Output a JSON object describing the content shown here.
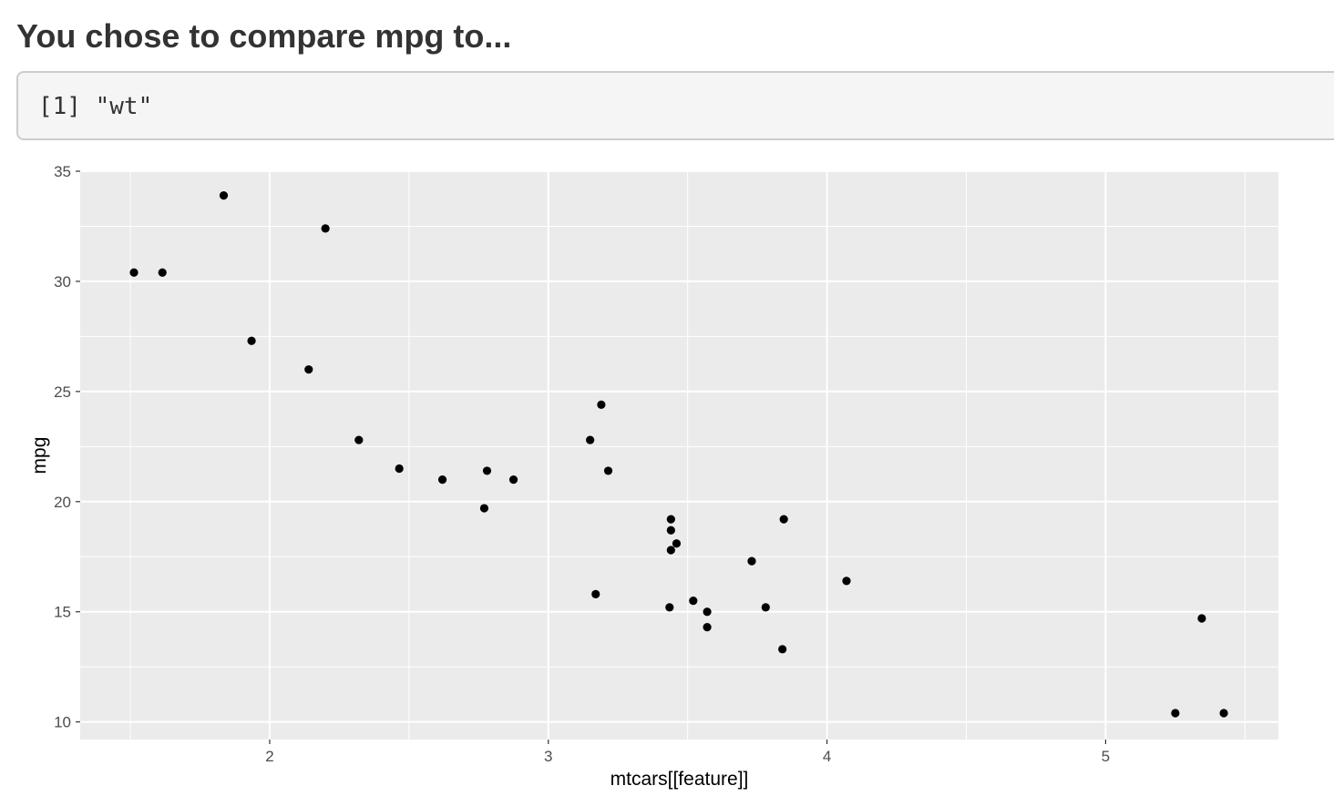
{
  "heading": "You chose to compare mpg to...",
  "console_output": "[1] \"wt\"",
  "chart_data": {
    "type": "scatter",
    "title": "",
    "xlabel": "mtcars[[feature]]",
    "ylabel": "mpg",
    "xlim": [
      1.32,
      5.62
    ],
    "ylim": [
      9.2,
      35.0
    ],
    "x_ticks": [
      2,
      3,
      4,
      5
    ],
    "y_ticks": [
      10,
      15,
      20,
      25,
      30,
      35
    ],
    "grid": true,
    "panel_background": "#ebebeb",
    "grid_color": "#ffffff",
    "point_color": "#000000",
    "points": [
      {
        "x": 2.62,
        "y": 21.0
      },
      {
        "x": 2.875,
        "y": 21.0
      },
      {
        "x": 2.32,
        "y": 22.8
      },
      {
        "x": 3.215,
        "y": 21.4
      },
      {
        "x": 3.44,
        "y": 18.7
      },
      {
        "x": 3.46,
        "y": 18.1
      },
      {
        "x": 3.57,
        "y": 14.3
      },
      {
        "x": 3.19,
        "y": 24.4
      },
      {
        "x": 3.15,
        "y": 22.8
      },
      {
        "x": 3.44,
        "y": 19.2
      },
      {
        "x": 3.44,
        "y": 17.8
      },
      {
        "x": 4.07,
        "y": 16.4
      },
      {
        "x": 3.73,
        "y": 17.3
      },
      {
        "x": 3.78,
        "y": 15.2
      },
      {
        "x": 5.25,
        "y": 10.4
      },
      {
        "x": 5.424,
        "y": 10.4
      },
      {
        "x": 5.345,
        "y": 14.7
      },
      {
        "x": 2.2,
        "y": 32.4
      },
      {
        "x": 1.615,
        "y": 30.4
      },
      {
        "x": 1.835,
        "y": 33.9
      },
      {
        "x": 2.465,
        "y": 21.5
      },
      {
        "x": 3.52,
        "y": 15.5
      },
      {
        "x": 3.435,
        "y": 15.2
      },
      {
        "x": 3.84,
        "y": 13.3
      },
      {
        "x": 3.845,
        "y": 19.2
      },
      {
        "x": 1.935,
        "y": 27.3
      },
      {
        "x": 2.14,
        "y": 26.0
      },
      {
        "x": 1.513,
        "y": 30.4
      },
      {
        "x": 3.17,
        "y": 15.8
      },
      {
        "x": 2.77,
        "y": 19.7
      },
      {
        "x": 3.57,
        "y": 15.0
      },
      {
        "x": 2.78,
        "y": 21.4
      }
    ]
  }
}
